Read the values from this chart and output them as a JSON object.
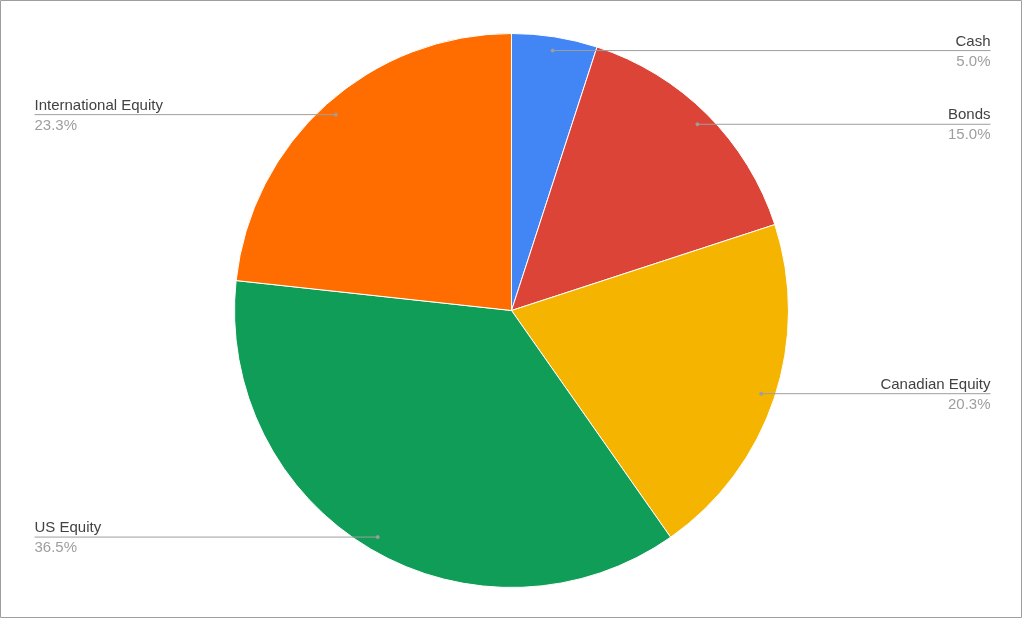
{
  "chart_data": {
    "type": "pie",
    "categories": [
      "Cash",
      "Bonds",
      "Canadian Equity",
      "US Equity",
      "International Equity"
    ],
    "values": [
      5.0,
      15.0,
      20.3,
      36.5,
      23.3
    ],
    "value_labels": [
      "5.0%",
      "15.0%",
      "20.3%",
      "36.5%",
      "23.3%"
    ],
    "colors": [
      "#4285f4",
      "#db4437",
      "#f4b400",
      "#0f9d58",
      "#ff6d00"
    ]
  }
}
